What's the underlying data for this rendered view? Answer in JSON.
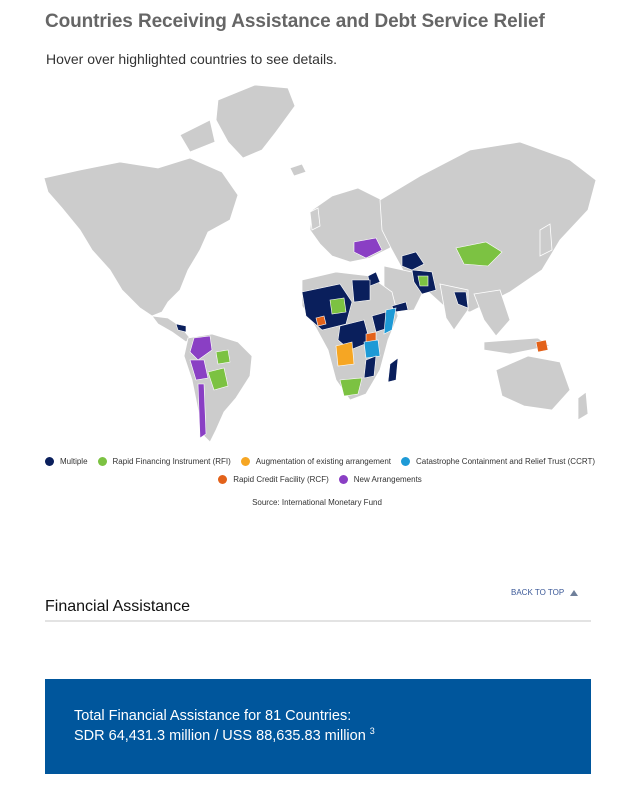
{
  "page": {
    "title": "Countries Receiving Assistance and Debt Service Relief",
    "subtitle": "Hover over highlighted countries to see details."
  },
  "colors": {
    "land": "#cccccc",
    "border": "#ffffff",
    "multiple": "#0a1f5c",
    "rfi": "#7cc242",
    "augmentation": "#f6a623",
    "ccrt": "#1e9ad6",
    "rcf": "#e3621a",
    "new_arrangements": "#8a3fc4",
    "panel": "#00569c"
  },
  "legend": {
    "items": [
      {
        "key": "multiple",
        "label": "Multiple"
      },
      {
        "key": "rfi",
        "label": "Rapid Financing Instrument (RFI)"
      },
      {
        "key": "augmentation",
        "label": "Augmentation of existing arrangement"
      },
      {
        "key": "ccrt",
        "label": "Catastrophe Containment and Relief Trust (CCRT)"
      },
      {
        "key": "rcf",
        "label": "Rapid Credit Facility (RCF)"
      },
      {
        "key": "new_arrangements",
        "label": "New Arrangements"
      }
    ]
  },
  "source": "Source: International Monetary Fund",
  "section": {
    "title": "Financial Assistance",
    "back_to_top": "BACK TO TOP"
  },
  "panel": {
    "line1": "Total Financial Assistance for 81 Countries:",
    "line2": "SDR 64,431.3 million / USS 88,635.83 million",
    "footnote": "3"
  },
  "map_regions": [
    {
      "name": "ukraine",
      "category": "new_arrangements"
    },
    {
      "name": "mongolia",
      "category": "rfi"
    },
    {
      "name": "kyrgyzstan-tajikistan",
      "category": "multiple"
    },
    {
      "name": "afghanistan-pakistan",
      "category": "multiple"
    },
    {
      "name": "nepal-bangladesh",
      "category": "multiple"
    },
    {
      "name": "jordan",
      "category": "multiple"
    },
    {
      "name": "egypt",
      "category": "multiple"
    },
    {
      "name": "somalia",
      "category": "ccrt"
    },
    {
      "name": "ethiopia",
      "category": "multiple"
    },
    {
      "name": "west-africa",
      "category": "multiple"
    },
    {
      "name": "angola",
      "category": "augmentation"
    },
    {
      "name": "south-africa",
      "category": "rfi"
    },
    {
      "name": "madagascar",
      "category": "multiple"
    },
    {
      "name": "papua-new-guinea",
      "category": "rcf"
    },
    {
      "name": "colombia-peru",
      "category": "new_arrangements"
    },
    {
      "name": "chile",
      "category": "new_arrangements"
    },
    {
      "name": "brazil-partial",
      "category": "rfi"
    },
    {
      "name": "bolivia-paraguay",
      "category": "rfi"
    }
  ]
}
